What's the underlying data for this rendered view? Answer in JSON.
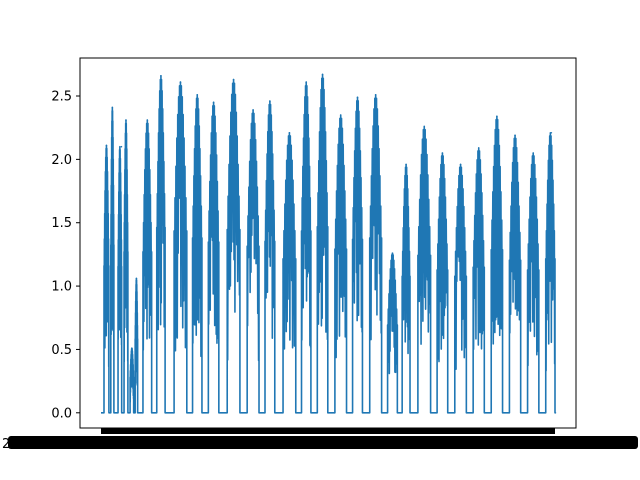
{
  "chart_data": {
    "type": "line",
    "title": "",
    "xlabel": "",
    "ylabel": "",
    "ylim": [
      -0.12,
      2.8
    ],
    "yticks": [
      0.0,
      0.5,
      1.0,
      1.5,
      2.0,
      2.5
    ],
    "ytick_labels": [
      "0.0",
      "0.5",
      "1.0",
      "1.5",
      "2.0",
      "2.5"
    ],
    "xtick_labels_note": "dense overlapping date labels rendered as solid black band",
    "grid": false,
    "legend": "none",
    "series": [
      {
        "color": "#1f77b4",
        "cycles": [
          {
            "x": 0.012,
            "peak": 2.11
          },
          {
            "x": 0.025,
            "peak": 2.41
          },
          {
            "x": 0.045,
            "peak": 2.1
          },
          {
            "x": 0.055,
            "peak": 2.31
          },
          {
            "x": 0.068,
            "peak": 0.51
          },
          {
            "x": 0.078,
            "peak": 1.06
          },
          {
            "x": 0.102,
            "peak": 2.31
          },
          {
            "x": 0.132,
            "peak": 2.66
          },
          {
            "x": 0.175,
            "peak": 2.61
          },
          {
            "x": 0.212,
            "peak": 2.51
          },
          {
            "x": 0.248,
            "peak": 2.45
          },
          {
            "x": 0.292,
            "peak": 2.63
          },
          {
            "x": 0.335,
            "peak": 2.39
          },
          {
            "x": 0.372,
            "peak": 2.46
          },
          {
            "x": 0.415,
            "peak": 2.21
          },
          {
            "x": 0.452,
            "peak": 2.61
          },
          {
            "x": 0.488,
            "peak": 2.67
          },
          {
            "x": 0.528,
            "peak": 2.35
          },
          {
            "x": 0.565,
            "peak": 2.49
          },
          {
            "x": 0.605,
            "peak": 2.51
          },
          {
            "x": 0.642,
            "peak": 1.26
          },
          {
            "x": 0.672,
            "peak": 1.96
          },
          {
            "x": 0.712,
            "peak": 2.26
          },
          {
            "x": 0.752,
            "peak": 2.05
          },
          {
            "x": 0.792,
            "peak": 1.96
          },
          {
            "x": 0.832,
            "peak": 2.09
          },
          {
            "x": 0.872,
            "peak": 2.34
          },
          {
            "x": 0.912,
            "peak": 2.19
          },
          {
            "x": 0.952,
            "peak": 2.05
          },
          {
            "x": 0.992,
            "peak": 2.21
          }
        ]
      }
    ]
  }
}
